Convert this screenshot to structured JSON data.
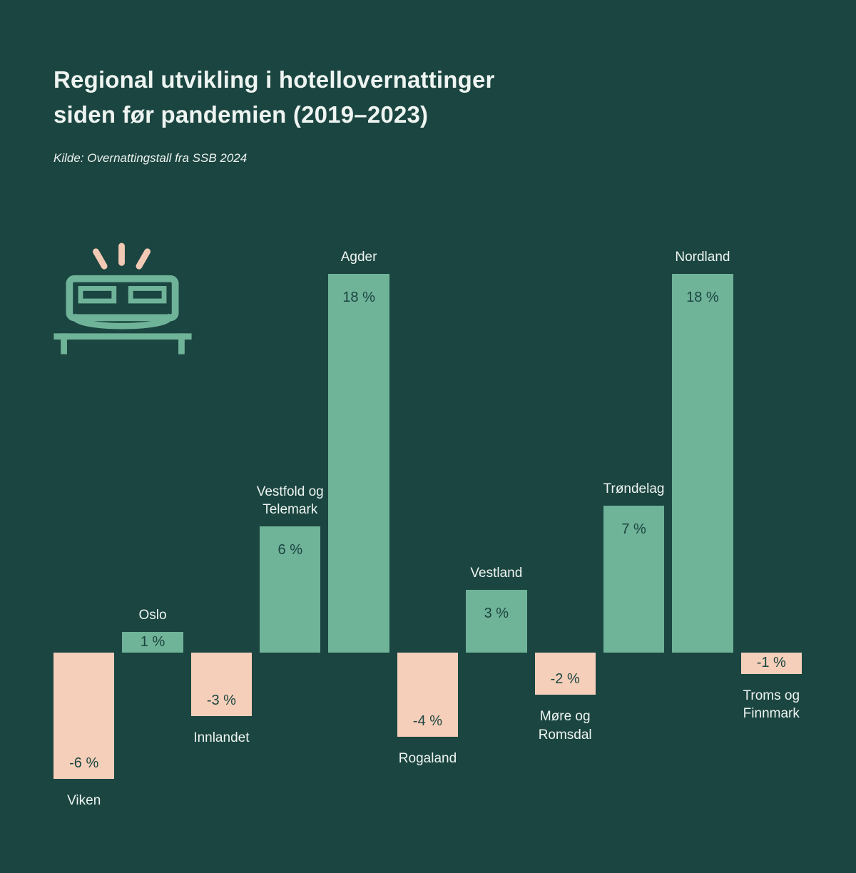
{
  "header": {
    "title_line1": "Regional utvikling i hotellovernattinger",
    "title_line2": "siden før pandemien (2019–2023)",
    "source": "Kilde: Overnattingstall fra SSB 2024"
  },
  "colors": {
    "background": "#1b4540",
    "positive_bar": "#6fb399",
    "negative_bar": "#f6cfba",
    "text_light": "#eef4f1",
    "text_dark": "#1b4540",
    "sparkle": "#f2c9b4"
  },
  "chart_data": {
    "type": "bar",
    "title": "Regional utvikling i hotellovernattinger siden før pandemien (2019–2023)",
    "source": "Kilde: Overnattingstall fra SSB 2024",
    "categories": [
      "Viken",
      "Oslo",
      "Innlandet",
      "Vestfold og Telemark",
      "Agder",
      "Rogaland",
      "Vestland",
      "Møre og Romsdal",
      "Trøndelag",
      "Nordland",
      "Troms og Finnmark"
    ],
    "values": [
      -6,
      1,
      -3,
      6,
      18,
      -4,
      3,
      -2,
      7,
      18,
      -1
    ],
    "value_labels": [
      "-6 %",
      "1 %",
      "-3 %",
      "6 %",
      "18 %",
      "-4 %",
      "3 %",
      "-2 %",
      "7 %",
      "18 %",
      "-1 %"
    ],
    "unit": "%",
    "ylim": [
      -7,
      19
    ],
    "grid": false,
    "legend": false,
    "baseline": 0,
    "positive_color": "#6fb399",
    "negative_color": "#f6cfba"
  }
}
